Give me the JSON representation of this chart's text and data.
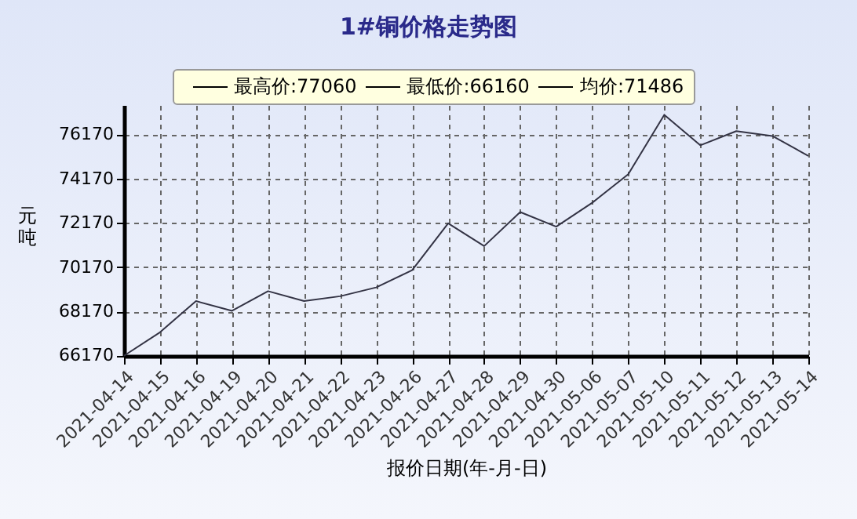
{
  "chart_data": {
    "type": "line",
    "title": "1#铜价格走势图",
    "xlabel": "报价日期(年-月-日)",
    "ylabel": "元吨",
    "annotations": [
      "最高价:77060",
      "最低价:66160",
      "均价:71486"
    ],
    "categories": [
      "2021-04-14",
      "2021-04-15",
      "2021-04-16",
      "2021-04-19",
      "2021-04-20",
      "2021-04-21",
      "2021-04-22",
      "2021-04-23",
      "2021-04-26",
      "2021-04-27",
      "2021-04-28",
      "2021-04-29",
      "2021-04-30",
      "2021-05-06",
      "2021-05-07",
      "2021-05-10",
      "2021-05-11",
      "2021-05-12",
      "2021-05-13",
      "2021-05-14"
    ],
    "series": [
      {
        "color": "#333344",
        "values": [
          66160,
          67220,
          68630,
          68190,
          69080,
          68630,
          68850,
          69250,
          70030,
          72150,
          71120,
          72660,
          72000,
          73080,
          74370,
          77060,
          75680,
          76320,
          76100,
          75200
        ]
      }
    ],
    "ylim": [
      66150,
      77500
    ],
    "yticks": [
      66170,
      68170,
      70170,
      72170,
      74170,
      76170
    ],
    "grid": true,
    "marker": "none",
    "line_style": "solid",
    "legend": false
  }
}
